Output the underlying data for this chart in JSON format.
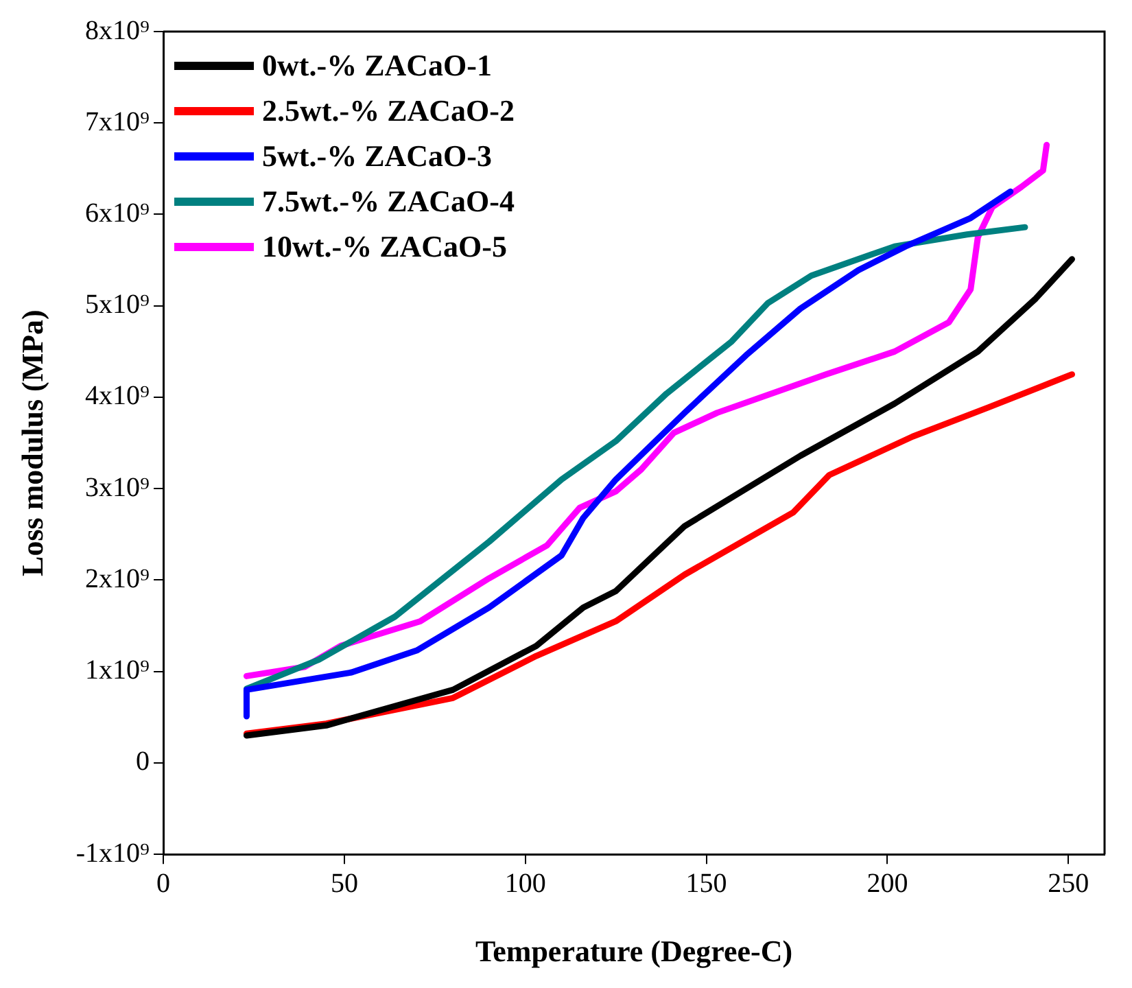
{
  "chart_data": {
    "type": "line",
    "xlabel": "Temperature (Degree-C)",
    "ylabel": "Loss modulus (MPa)",
    "xlim": [
      0,
      260
    ],
    "xticks": [
      0,
      50,
      100,
      150,
      200,
      250
    ],
    "ylim": [
      -1000000000.0,
      8000000000.0
    ],
    "yticks": [
      {
        "value": -1000000000.0,
        "label": "-1x10⁹"
      },
      0,
      {
        "value": 1000000000.0,
        "label": "1x10⁹"
      },
      {
        "value": 2000000000.0,
        "label": "2x10⁹"
      },
      {
        "value": 3000000000.0,
        "label": "3x10⁹"
      },
      {
        "value": 4000000000.0,
        "label": "4x10⁹"
      },
      {
        "value": 5000000000.0,
        "label": "5x10⁹"
      },
      {
        "value": 6000000000.0,
        "label": "6x10⁹"
      },
      {
        "value": 7000000000.0,
        "label": "7x10⁹"
      },
      {
        "value": 8000000000.0,
        "label": "8x10⁹"
      }
    ],
    "grid": false,
    "legend": "top left",
    "marker": "none",
    "line_style": "solid",
    "series": [
      {
        "name": "0wt.-% ZACaO-1",
        "color": "#000000",
        "x": [
          23,
          45,
          80,
          103,
          116,
          125,
          144,
          176,
          202,
          225,
          241,
          251
        ],
        "values": [
          300000000.0,
          410000000.0,
          800000000.0,
          1280000000.0,
          1700000000.0,
          1880000000.0,
          2590000000.0,
          3360000000.0,
          3930000000.0,
          4500000000.0,
          5080000000.0,
          5510000000.0
        ]
      },
      {
        "name": "2.5wt.-% ZACaO-2",
        "color": "#ff0000",
        "x": [
          23,
          45,
          80,
          103,
          125,
          144,
          174,
          184,
          207,
          228,
          251
        ],
        "values": [
          320000000.0,
          430000000.0,
          710000000.0,
          1170000000.0,
          1550000000.0,
          2060000000.0,
          2740000000.0,
          3150000000.0,
          3570000000.0,
          3890000000.0,
          4250000000.0
        ]
      },
      {
        "name": "5wt.-% ZACaO-3",
        "color": "#0000ff",
        "x": [
          23,
          23,
          52,
          70,
          90,
          110,
          116,
          125,
          144,
          161,
          176,
          192,
          205,
          223,
          234
        ],
        "values": [
          510000000.0,
          800000000.0,
          990000000.0,
          1230000000.0,
          1700000000.0,
          2270000000.0,
          2680000000.0,
          3100000000.0,
          3830000000.0,
          4460000000.0,
          4970000000.0,
          5390000000.0,
          5650000000.0,
          5960000000.0,
          6250000000.0
        ]
      },
      {
        "name": "7.5wt.-% ZACaO-4",
        "color": "#008080",
        "x": [
          23,
          43,
          64,
          90,
          110,
          125,
          139,
          157,
          167,
          179,
          202,
          222,
          238
        ],
        "values": [
          810000000.0,
          1130000000.0,
          1600000000.0,
          2420000000.0,
          3100000000.0,
          3520000000.0,
          4040000000.0,
          4610000000.0,
          5030000000.0,
          5330000000.0,
          5650000000.0,
          5780000000.0,
          5860000000.0
        ]
      },
      {
        "name": "10wt.-% ZACaO-5",
        "color": "#ff00ff",
        "x": [
          23,
          39,
          49,
          71,
          90,
          106,
          115,
          125,
          132,
          141,
          153,
          183,
          202,
          217,
          223,
          225,
          229,
          237,
          243,
          244
        ],
        "values": [
          950000000.0,
          1050000000.0,
          1280000000.0,
          1550000000.0,
          2020000000.0,
          2380000000.0,
          2790000000.0,
          2970000000.0,
          3210000000.0,
          3610000000.0,
          3830000000.0,
          4250000000.0,
          4500000000.0,
          4820000000.0,
          5180000000.0,
          5750000000.0,
          6080000000.0,
          6300000000.0,
          6480000000.0,
          6760000000.0
        ]
      }
    ]
  }
}
